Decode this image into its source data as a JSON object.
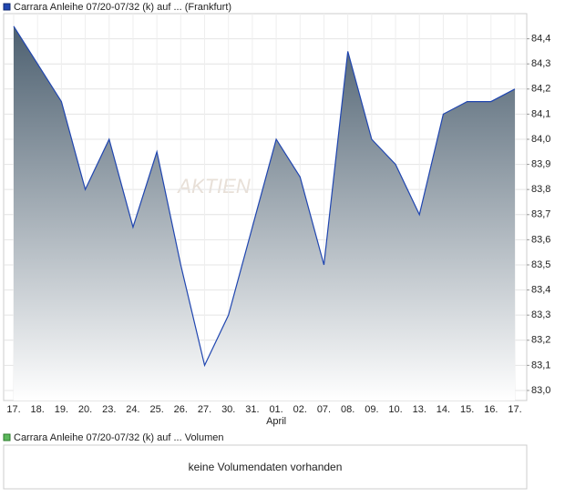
{
  "chart_data": {
    "type": "area",
    "legend": "Carrara Anleihe 07/20-07/32 (k) auf ... (Frankfurt)",
    "watermark": "AKTIEN",
    "categories": [
      "17.",
      "18.",
      "19.",
      "20.",
      "23.",
      "24.",
      "25.",
      "26.",
      "27.",
      "30.",
      "31.",
      "01.",
      "02.",
      "07.",
      "08.",
      "09.",
      "10.",
      "13.",
      "14.",
      "15.",
      "16.",
      "17."
    ],
    "month_label": "April",
    "series": [
      {
        "name": "Carrara Anleihe 07/20-07/32 (k) auf ... (Frankfurt)",
        "color": "#2046b0",
        "values": [
          84.45,
          84.3,
          84.15,
          83.8,
          84.0,
          83.65,
          83.95,
          83.5,
          83.1,
          83.3,
          83.65,
          84.0,
          83.85,
          83.5,
          84.35,
          84.0,
          83.9,
          83.7,
          84.1,
          84.15,
          84.15,
          84.2
        ]
      }
    ],
    "ylim": [
      82.96,
      84.5
    ],
    "yticks": [
      {
        "value": 83.0,
        "label": "83,0"
      },
      {
        "value": 83.1,
        "label": "83,1"
      },
      {
        "value": 83.2,
        "label": "83,2"
      },
      {
        "value": 83.3,
        "label": "83,3"
      },
      {
        "value": 83.4,
        "label": "83,4"
      },
      {
        "value": 83.5,
        "label": "83,5"
      },
      {
        "value": 83.6,
        "label": "83,6"
      },
      {
        "value": 83.7,
        "label": "83,7"
      },
      {
        "value": 83.8,
        "label": "83,8"
      },
      {
        "value": 83.9,
        "label": "83,9"
      },
      {
        "value": 84.0,
        "label": "84,0"
      },
      {
        "value": 84.1,
        "label": "84,1"
      },
      {
        "value": 84.2,
        "label": "84,2"
      },
      {
        "value": 84.3,
        "label": "84,3"
      },
      {
        "value": 84.4,
        "label": "84,4"
      }
    ],
    "grid": true
  },
  "volume_panel": {
    "legend": "Carrara Anleihe 07/20-07/32 (k) auf ... Volumen",
    "message": "keine Volumendaten vorhanden"
  }
}
